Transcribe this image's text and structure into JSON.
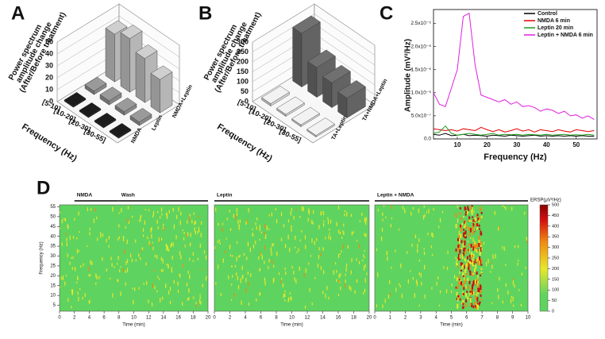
{
  "chart_data": [
    {
      "type": "bar3d",
      "label": "A",
      "ylabel": [
        "Power spectrum",
        "amplitude change",
        "(After/Before treatment)"
      ],
      "xlabel": "Frequency (Hz)",
      "categories": [
        "[5-10]",
        "[10-20]",
        "[20-30]",
        "[30-55]"
      ],
      "series": [
        {
          "name": "NMDA",
          "color": "#1c1c1c",
          "values": [
            1,
            1,
            1,
            1
          ]
        },
        {
          "name": "Leptin",
          "color": "#9a9a9a",
          "values": [
            3,
            3.5,
            3,
            3
          ]
        },
        {
          "name": "NMDA+Leptin",
          "color": "#cfcfcf",
          "values": [
            40,
            45,
            37,
            28
          ]
        }
      ],
      "ylim": [
        0,
        50
      ],
      "yticks": [
        0,
        10,
        20,
        30,
        40,
        50
      ]
    },
    {
      "type": "bar3d",
      "label": "B",
      "ylabel": [
        "Power spectrum",
        "amplitude change",
        "(After/Before treatment)"
      ],
      "xlabel": "Frequency (Hz)",
      "categories": [
        "[5-10]",
        "[10-20]",
        "[20-30]",
        "[30-55]"
      ],
      "series": [
        {
          "name": "TA+Leptin",
          "color": "#f2f2f2",
          "values": [
            12,
            10,
            9,
            8
          ]
        },
        {
          "name": "TA+NMDA+Leptin",
          "color": "#707070",
          "values": [
            270,
            150,
            125,
            100
          ]
        }
      ],
      "ylim": [
        0,
        300
      ],
      "yticks": [
        0,
        50,
        100,
        150,
        200,
        250,
        300
      ]
    },
    {
      "type": "line",
      "label": "C",
      "ylabel": "Amplitude (mV²/Hz)",
      "xlabel": "Frequency (Hz)",
      "x": [
        2,
        4,
        6,
        8,
        10,
        12,
        14,
        16,
        18,
        20,
        22,
        24,
        26,
        28,
        30,
        32,
        34,
        36,
        38,
        40,
        42,
        44,
        46,
        48,
        50,
        52,
        54,
        56
      ],
      "series": [
        {
          "name": "Control",
          "color": "#000000",
          "values": [
            1e-07,
            8e-08,
            1.2e-07,
            7e-08,
            8e-08,
            1e-07,
            7e-08,
            8e-08,
            7e-08,
            6e-08,
            8e-08,
            7e-08,
            6e-08,
            8e-08,
            7e-08,
            6e-08,
            7e-08,
            8e-08,
            6e-08,
            7e-08,
            6e-08,
            7e-08,
            6e-08,
            7e-08,
            6e-08,
            7e-08,
            6e-08,
            6e-08
          ]
        },
        {
          "name": "NMDA 6 min",
          "color": "#e00000",
          "values": [
            2.2e-07,
            2e-07,
            1.8e-07,
            2e-07,
            1.7e-07,
            2.2e-07,
            2e-07,
            1.8e-07,
            2.5e-07,
            2e-07,
            1.6e-07,
            2e-07,
            1.5e-07,
            1.8e-07,
            2.2e-07,
            1.7e-07,
            2e-07,
            1.5e-07,
            2e-07,
            1.8e-07,
            1.6e-07,
            2e-07,
            1.7e-07,
            1.5e-07,
            2e-07,
            1.8e-07,
            1.6e-07,
            1.8e-07
          ]
        },
        {
          "name": "Leptin 20 min",
          "color": "#1a9a1a",
          "values": [
            1.2e-07,
            1.5e-07,
            2.8e-07,
            1.2e-07,
            8e-08,
            1e-07,
            1.2e-07,
            1e-07,
            8e-08,
            1e-07,
            1.2e-07,
            8e-08,
            1e-07,
            9e-08,
            1e-07,
            8e-08,
            1e-07,
            9e-08,
            8e-08,
            1e-07,
            8e-08,
            9e-08,
            1e-07,
            8e-08,
            9e-08,
            8e-08,
            1e-07,
            8e-08
          ]
        },
        {
          "name": "Leptin + NMDA 6 min",
          "color": "#e020e0",
          "values": [
            1e-06,
            7.5e-07,
            7e-07,
            1.1e-06,
            1.5e-06,
            2.65e-06,
            2.72e-06,
            1.6e-06,
            9.5e-07,
            9e-07,
            8.5e-07,
            8e-07,
            8.5e-07,
            7.5e-07,
            8e-07,
            7e-07,
            7.2e-07,
            6.8e-07,
            6e-07,
            6.5e-07,
            6.2e-07,
            5.5e-07,
            6e-07,
            5e-07,
            5.2e-07,
            4.5e-07,
            5e-07,
            4.2e-07
          ]
        }
      ],
      "xlim": [
        2,
        57
      ],
      "ylim": [
        0,
        2.8e-06
      ],
      "xticks": [
        10,
        20,
        30,
        40,
        50
      ],
      "yticks": [
        {
          "value": 0,
          "label": "0.0"
        },
        {
          "value": 5e-07,
          "label": "5.0x10⁻⁷"
        },
        {
          "value": 1e-06,
          "label": "1.0x10⁻⁶"
        },
        {
          "value": 1.5e-06,
          "label": "1.5x10⁻⁶"
        },
        {
          "value": 2e-06,
          "label": "2.0x10⁻⁶"
        },
        {
          "value": 2.5e-06,
          "label": "2.5x10⁻⁶"
        }
      ],
      "legend": "upper right"
    },
    {
      "type": "heatmap",
      "label": "D",
      "ylabel": "Frequency (Hz)",
      "ylim": [
        2,
        56
      ],
      "yticks": [
        5,
        10,
        15,
        20,
        25,
        30,
        35,
        40,
        45,
        50,
        55
      ],
      "panels": [
        {
          "xlabel": "Time (min)",
          "xlim": [
            0,
            20
          ],
          "xticks": [
            0,
            2,
            4,
            6,
            8,
            10,
            12,
            14,
            16,
            18,
            20
          ],
          "treatments": [
            {
              "name": "NMDA",
              "range": [
                2,
                8
              ]
            },
            {
              "name": "Wash",
              "range": [
                8,
                20
              ]
            }
          ]
        },
        {
          "xlabel": "Time (min)",
          "xlim": [
            0,
            20
          ],
          "xticks": [
            0,
            2,
            4,
            6,
            8,
            10,
            12,
            14,
            16,
            18,
            20
          ],
          "treatments": [
            {
              "name": "Leptin",
              "range": [
                0,
                20
              ]
            }
          ]
        },
        {
          "xlabel": "Time (min)",
          "xlim": [
            0,
            10
          ],
          "xticks": [
            0,
            1,
            2,
            3,
            4,
            5,
            6,
            7,
            8,
            9,
            10
          ],
          "treatments": [
            {
              "name": "Leptin + NMDA",
              "range": [
                0,
                10
              ]
            }
          ]
        }
      ],
      "colorbar": {
        "title": "ERSP(μV²/Hz)",
        "lim": [
          0,
          500
        ],
        "ticks": [
          0,
          50,
          100,
          150,
          200,
          250,
          300,
          350,
          400,
          450,
          500
        ]
      }
    }
  ]
}
